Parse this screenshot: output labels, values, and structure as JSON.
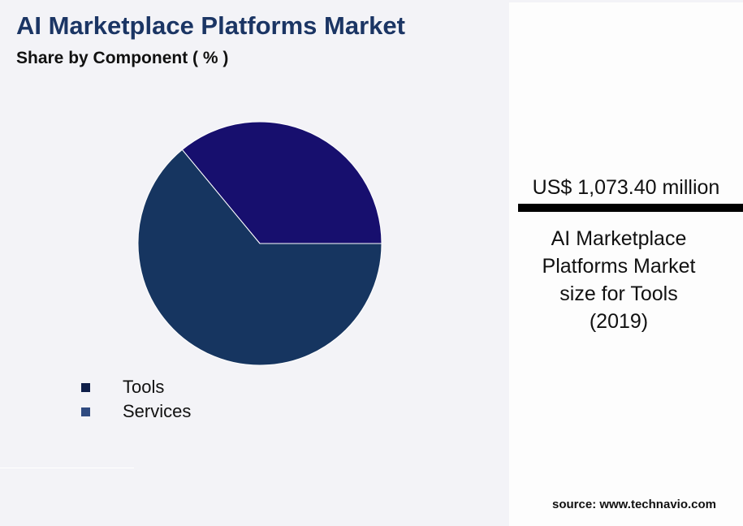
{
  "chart_data": {
    "type": "pie",
    "title": "AI Marketplace Platforms Market",
    "subtitle": "Share by Component ( % )",
    "categories": [
      "Tools",
      "Services"
    ],
    "values": [
      64,
      36
    ],
    "slice_colors": [
      "#163560",
      "#170f6e"
    ],
    "legend_colors": [
      "#0f1f4a",
      "#2f4a80"
    ],
    "legend_placement": "bottom-left"
  },
  "panel": {
    "value": "US$ 1,073.40 million",
    "description_lines": [
      "AI Marketplace",
      "Platforms Market",
      "size for Tools",
      "(2019)"
    ]
  },
  "source": "source: www.technavio.com"
}
